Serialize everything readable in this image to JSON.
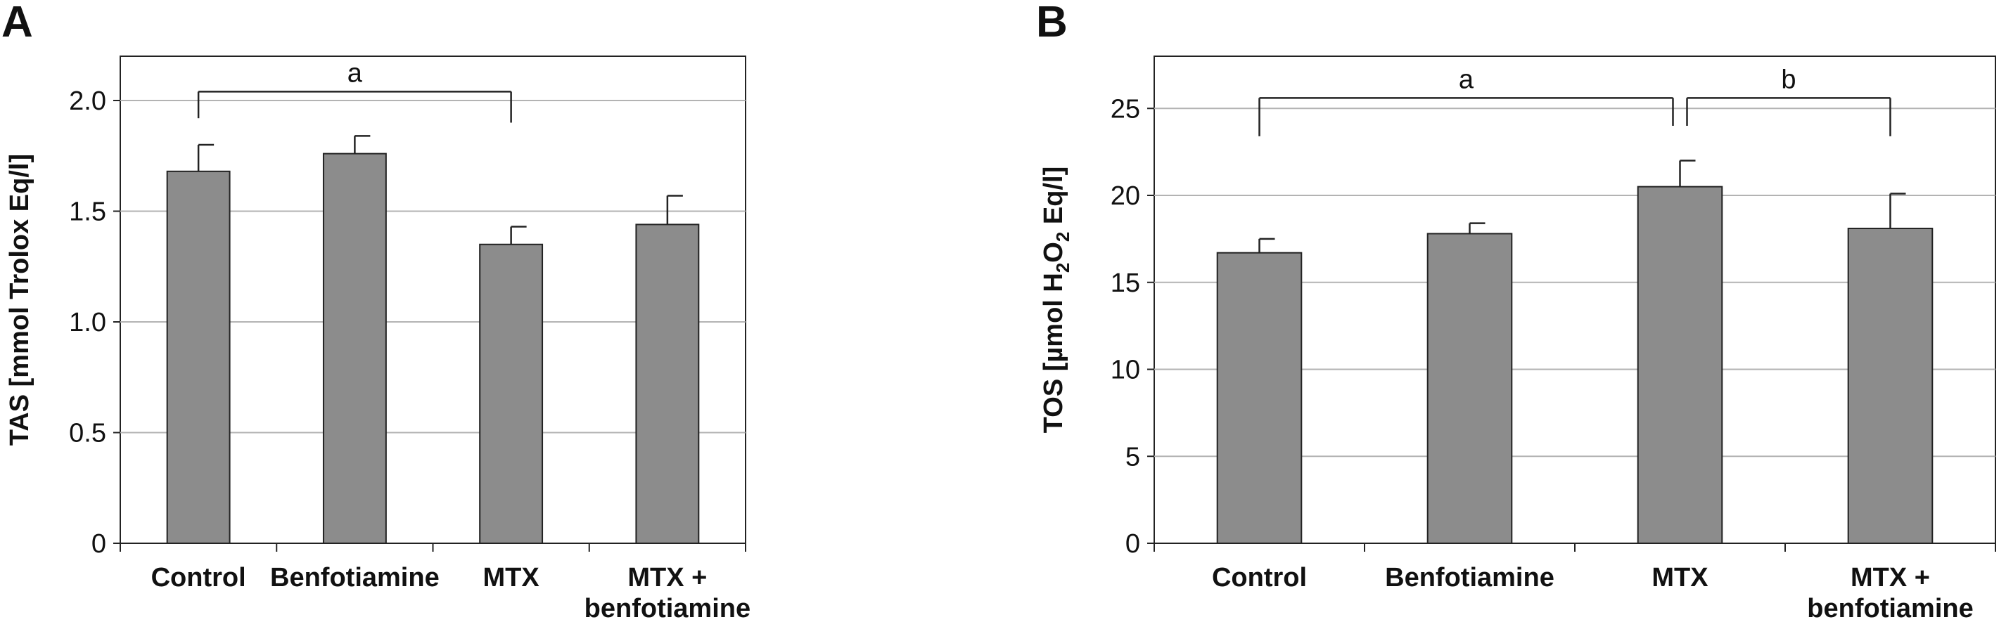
{
  "chart_data": [
    {
      "type": "bar",
      "panel": "A",
      "title": "",
      "xlabel": "",
      "ylabel": "TAS [mmol Trolox Eq/l]",
      "categories": [
        "Control",
        "Benfotiamine",
        "MTX",
        "MTX + benfotiamine"
      ],
      "category_lines": [
        [
          "Control"
        ],
        [
          "Benfotiamine"
        ],
        [
          "MTX"
        ],
        [
          "MTX +",
          "benfotiamine"
        ]
      ],
      "values": [
        1.68,
        1.76,
        1.35,
        1.44
      ],
      "error_upper": [
        0.12,
        0.08,
        0.08,
        0.13
      ],
      "ylim": [
        0,
        2.2
      ],
      "yticks": [
        0,
        0.5,
        1.0,
        1.5,
        2.0
      ],
      "ytick_labels": [
        "0",
        "0.5",
        "1.0",
        "1.5",
        "2.0"
      ],
      "grid": true,
      "bar_color": "#8c8c8c",
      "grid_color": "#b3b3b3",
      "significance": [
        {
          "label": "a",
          "from": 0,
          "to": 2,
          "y": 2.04,
          "left_end": 1.92,
          "right_end": 1.9
        }
      ]
    },
    {
      "type": "bar",
      "panel": "B",
      "title": "",
      "xlabel": "",
      "ylabel": "TOS [µmol H2O2 Eq/l]",
      "ylabel_parts": {
        "prefix": "TOS [µmol H",
        "sub1": "2",
        "mid": "O",
        "sub2": "2",
        "suffix": " Eq/l]"
      },
      "categories": [
        "Control",
        "Benfotiamine",
        "MTX",
        "MTX + benfotiamine"
      ],
      "category_lines": [
        [
          "Control"
        ],
        [
          "Benfotiamine"
        ],
        [
          "MTX"
        ],
        [
          "MTX +",
          "benfotiamine"
        ]
      ],
      "values": [
        16.7,
        17.8,
        20.5,
        18.1
      ],
      "error_upper": [
        0.8,
        0.6,
        1.5,
        2.0
      ],
      "ylim": [
        0,
        28
      ],
      "yticks": [
        0,
        5,
        10,
        15,
        20,
        25
      ],
      "ytick_labels": [
        "0",
        "5",
        "10",
        "15",
        "20",
        "25"
      ],
      "grid": true,
      "bar_color": "#8c8c8c",
      "grid_color": "#b3b3b3",
      "significance": [
        {
          "label": "a",
          "from": 0,
          "to": 2,
          "y": 25.6,
          "left_end": 23.4,
          "right_end": 24.0
        },
        {
          "label": "b",
          "from": 2,
          "to": 3,
          "y": 25.6,
          "left_end": 24.0,
          "right_end": 23.4
        }
      ]
    }
  ]
}
